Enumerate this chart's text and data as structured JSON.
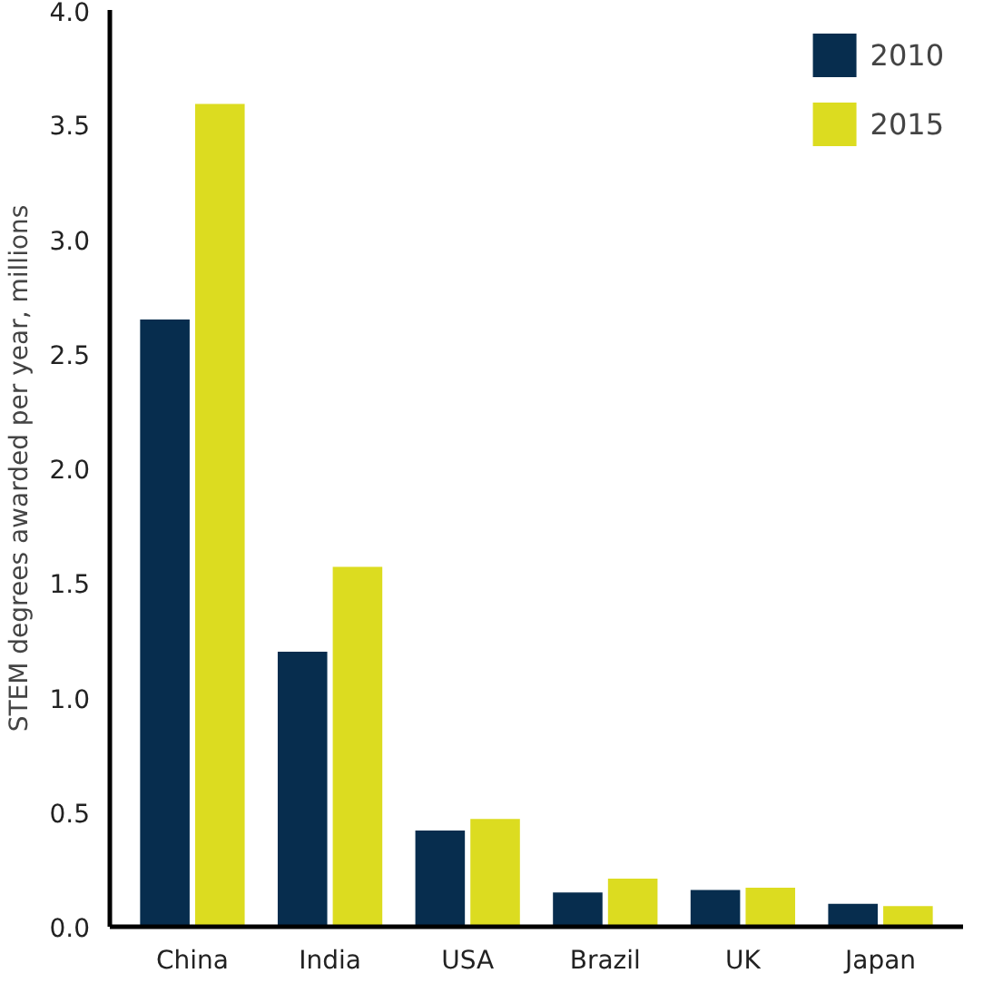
{
  "chart_data": {
    "type": "bar",
    "ylabel": "STEM degrees awarded per year, millions",
    "categories": [
      "China",
      "India",
      "USA",
      "Brazil",
      "UK",
      "Japan"
    ],
    "series": [
      {
        "name": "2010",
        "color": "#072d4e",
        "values": [
          2.65,
          1.2,
          0.42,
          0.15,
          0.16,
          0.1
        ]
      },
      {
        "name": "2015",
        "color": "#dcdc20",
        "values": [
          3.59,
          1.57,
          0.47,
          0.21,
          0.17,
          0.09
        ]
      }
    ],
    "ylim": [
      0,
      4.0
    ],
    "yticks": [
      {
        "value": 0,
        "label": "0.0"
      },
      {
        "value": 0.5,
        "label": "0.5"
      },
      {
        "value": 1,
        "label": "1.0"
      },
      {
        "value": 1.5,
        "label": "1.5"
      },
      {
        "value": 2,
        "label": "2.0"
      },
      {
        "value": 2.5,
        "label": "2.5"
      },
      {
        "value": 3,
        "label": "3.0"
      },
      {
        "value": 3.5,
        "label": "3.5"
      },
      {
        "value": 4,
        "label": "4.0"
      }
    ],
    "grid": false,
    "legend": "top right"
  }
}
